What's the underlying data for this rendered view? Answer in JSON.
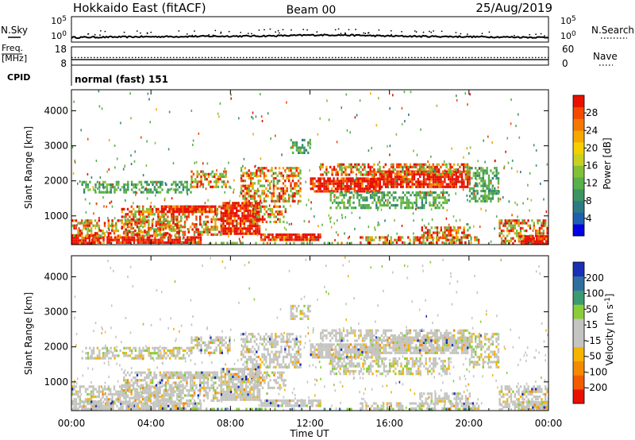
{
  "header": {
    "radar": "Hokkaido East (fitACF)",
    "beam": "Beam 00",
    "date": "25/Aug/2019"
  },
  "chart_data": [
    {
      "type": "line",
      "panel": "noise",
      "series": [
        {
          "name": "N.Sky",
          "style": "solid"
        },
        {
          "name": "N.Search",
          "style": "dotted"
        }
      ],
      "y_ticks_left": [
        "10^5",
        "10^0"
      ],
      "y_ticks_right": [
        "10^5",
        "10^0"
      ],
      "scale": "log"
    },
    {
      "type": "line",
      "panel": "frequency",
      "series": [
        {
          "name": "Freq. [MHz]",
          "style": "solid",
          "value": 11.0
        },
        {
          "name": "Nave",
          "style": "dotted",
          "value": 25
        }
      ],
      "y_ticks_left": [
        "18",
        "8"
      ],
      "y_ticks_right": [
        "60",
        "0"
      ]
    },
    {
      "type": "table",
      "panel": "cpid",
      "label": "CPID",
      "value": "normal (fast) 151"
    },
    {
      "type": "heatmap",
      "panel": "power",
      "ylabel": "Slant Range [km]",
      "y_ticks": [
        "1000",
        "2000",
        "3000",
        "4000"
      ],
      "ylim": [
        180,
        4600
      ],
      "colorbar": {
        "label": "Power [dB]",
        "ticks": [
          "4",
          "8",
          "12",
          "16",
          "20",
          "24",
          "28"
        ],
        "colors": [
          "#0000e0",
          "#1f5fb0",
          "#2e7a82",
          "#3c9464",
          "#58b04a",
          "#82c038",
          "#c8d020",
          "#f4d000",
          "#f4a800",
          "#f47800",
          "#f44a00",
          "#e81000"
        ]
      }
    },
    {
      "type": "heatmap",
      "panel": "velocity",
      "ylabel": "Slant Range [km]",
      "y_ticks": [
        "1000",
        "2000",
        "3000",
        "4000"
      ],
      "ylim": [
        180,
        4600
      ],
      "colorbar": {
        "label": "Velocity [m s^-1]",
        "ticks": [
          "200",
          "100",
          "50",
          "15",
          "-15",
          "-50",
          "-100",
          "-200"
        ],
        "colors": [
          "#1a2fb4",
          "#2e6ea0",
          "#3a9a72",
          "#8acc3a",
          "#c4c4c0",
          "#c4c4c0",
          "#f4b400",
          "#f48a00",
          "#f45a00",
          "#e81000"
        ]
      }
    }
  ],
  "x_axis": {
    "label": "Time UT",
    "ticks": [
      "00:00",
      "04:00",
      "08:00",
      "12:00",
      "16:00",
      "20:00",
      "00:00"
    ]
  }
}
